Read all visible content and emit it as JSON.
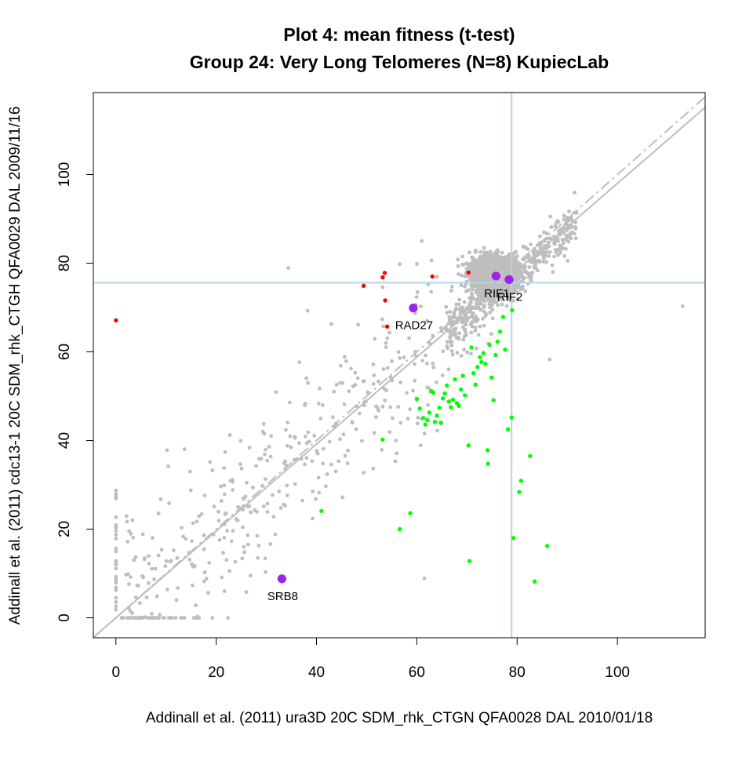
{
  "chart_data": {
    "type": "scatter",
    "title": "Plot 4: mean fitness (t-test)",
    "subtitle": "Group 24: Very Long Telomeres (N=8) KupiecLab",
    "xlabel": "Addinall et al. (2011) ura3D 20C SDM_rhk_CTGN    QFA0028 DAL 2010/01/18",
    "ylabel": "Addinall et al. (2011) cdc13-1 20C SDM_rhk_CTGH    QFA0029 DAL 2009/11/16",
    "xlim": [
      -4.5,
      117.5
    ],
    "ylim": [
      -4.5,
      118.5
    ],
    "x_ticks": [
      0,
      20,
      40,
      60,
      80,
      100
    ],
    "y_ticks": [
      0,
      20,
      40,
      60,
      80,
      100
    ],
    "grid": false,
    "reference_lines": {
      "vertical_x": 78.9,
      "horizontal_y": 75.6,
      "fit_line_slope": 0.98,
      "equal_line_slope": 1.0,
      "color": "#add8e6"
    },
    "colors": {
      "background_points": "#bebebe",
      "suppressors": "#ff0000",
      "enhancers": "#00ff00",
      "highlighted": "#a020f0",
      "lines": "#bebebe"
    },
    "highlighted_genes": [
      {
        "label": "RIF1",
        "x": 75.8,
        "y": 77.1
      },
      {
        "label": "RIF2",
        "x": 78.4,
        "y": 76.3
      },
      {
        "label": "RAD27",
        "x": 59.3,
        "y": 69.9
      },
      {
        "label": "SRB8",
        "x": 33.1,
        "y": 8.8
      }
    ],
    "red_points": [
      {
        "x": 0,
        "y": 67.1
      },
      {
        "x": 49.4,
        "y": 74.9
      },
      {
        "x": 53.2,
        "y": 76.8
      },
      {
        "x": 53.6,
        "y": 77.8
      },
      {
        "x": 53.7,
        "y": 71.6
      },
      {
        "x": 54.1,
        "y": 65.7
      },
      {
        "x": 63.1,
        "y": 77.0
      },
      {
        "x": 70.3,
        "y": 77.9
      }
    ],
    "green_points": [
      {
        "x": 41.0,
        "y": 24.1
      },
      {
        "x": 53.2,
        "y": 40.2
      },
      {
        "x": 56.6,
        "y": 20.0
      },
      {
        "x": 58.7,
        "y": 23.6
      },
      {
        "x": 60.0,
        "y": 49.4
      },
      {
        "x": 60.6,
        "y": 47.2
      },
      {
        "x": 61.3,
        "y": 45.1
      },
      {
        "x": 61.7,
        "y": 43.6
      },
      {
        "x": 62.1,
        "y": 44.6
      },
      {
        "x": 62.5,
        "y": 46.3
      },
      {
        "x": 62.9,
        "y": 51.2
      },
      {
        "x": 63.3,
        "y": 50.8
      },
      {
        "x": 63.6,
        "y": 44.2
      },
      {
        "x": 64.0,
        "y": 45.6
      },
      {
        "x": 64.5,
        "y": 47.4
      },
      {
        "x": 64.8,
        "y": 44.0
      },
      {
        "x": 65.2,
        "y": 49.5
      },
      {
        "x": 65.6,
        "y": 50.6
      },
      {
        "x": 66.0,
        "y": 52.4
      },
      {
        "x": 66.4,
        "y": 48.8
      },
      {
        "x": 66.8,
        "y": 47.5
      },
      {
        "x": 67.2,
        "y": 49.2
      },
      {
        "x": 67.6,
        "y": 53.8
      },
      {
        "x": 68.0,
        "y": 48.4
      },
      {
        "x": 68.4,
        "y": 47.8
      },
      {
        "x": 68.8,
        "y": 51.5
      },
      {
        "x": 69.2,
        "y": 54.6
      },
      {
        "x": 69.6,
        "y": 50.2
      },
      {
        "x": 70.3,
        "y": 38.9
      },
      {
        "x": 70.5,
        "y": 12.8
      },
      {
        "x": 70.9,
        "y": 61.0
      },
      {
        "x": 71.3,
        "y": 55.2
      },
      {
        "x": 71.7,
        "y": 52.6
      },
      {
        "x": 72.1,
        "y": 56.6
      },
      {
        "x": 72.6,
        "y": 58.8
      },
      {
        "x": 72.9,
        "y": 57.7
      },
      {
        "x": 73.3,
        "y": 59.7
      },
      {
        "x": 73.7,
        "y": 57.3
      },
      {
        "x": 74.1,
        "y": 37.8
      },
      {
        "x": 74.2,
        "y": 34.8
      },
      {
        "x": 74.5,
        "y": 61.6
      },
      {
        "x": 74.9,
        "y": 54.2
      },
      {
        "x": 75.3,
        "y": 49.1
      },
      {
        "x": 75.7,
        "y": 59.3
      },
      {
        "x": 76.1,
        "y": 62.3
      },
      {
        "x": 76.6,
        "y": 64.6
      },
      {
        "x": 77.2,
        "y": 67.9
      },
      {
        "x": 77.6,
        "y": 60.5
      },
      {
        "x": 78.2,
        "y": 42.5
      },
      {
        "x": 78.9,
        "y": 45.2
      },
      {
        "x": 79.3,
        "y": 18.0
      },
      {
        "x": 80.4,
        "y": 28.4
      },
      {
        "x": 80.8,
        "y": 30.9
      },
      {
        "x": 82.6,
        "y": 36.5
      },
      {
        "x": 83.5,
        "y": 8.2
      },
      {
        "x": 86.0,
        "y": 16.2
      },
      {
        "x": 79.0,
        "y": 69.4
      }
    ]
  }
}
